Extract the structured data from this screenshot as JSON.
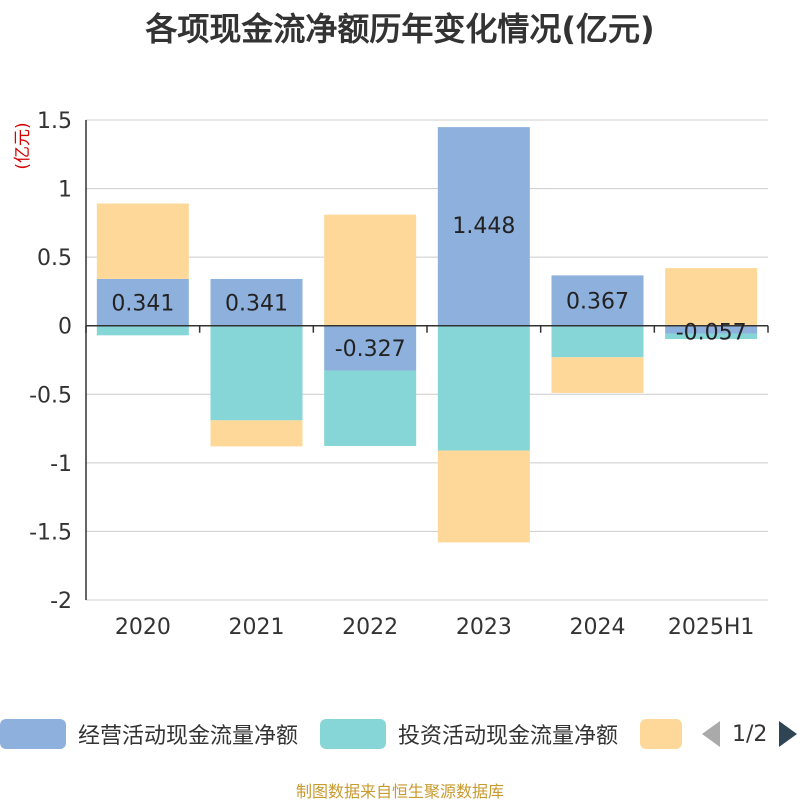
{
  "title": "各项现金流净额历年变化情况(亿元)",
  "source": "制图数据来自恒生聚源数据库",
  "legend_pager": {
    "page": "1/2"
  },
  "colors": {
    "operating": "#8eb0dc",
    "investing": "#86d6d8",
    "financing": "#fed899",
    "unit": "#d40000",
    "text": "#333333",
    "grid": "#cccccc"
  },
  "chart_data": {
    "type": "bar",
    "stacked": true,
    "unit_label": "(亿元)",
    "categories": [
      "2020",
      "2021",
      "2022",
      "2023",
      "2024",
      "2025H1"
    ],
    "ylim": [
      -2,
      1.5
    ],
    "yticks": [
      1.5,
      1,
      0.5,
      0,
      -0.5,
      -1,
      -1.5,
      -2
    ],
    "ytick_labels": [
      "1.5",
      "1",
      "0.5",
      "0",
      "-0.5",
      "-1",
      "-1.5",
      "-2"
    ],
    "grid": true,
    "legend_position": "bottom",
    "series": [
      {
        "name": "经营活动现金流量净额",
        "color_key": "operating",
        "values": [
          0.341,
          0.341,
          -0.327,
          1.448,
          0.367,
          -0.057
        ],
        "labels": [
          "0.341",
          "0.341",
          "-0.327",
          "1.448",
          "0.367",
          "-0.057"
        ]
      },
      {
        "name": "投资活动现金流量净额",
        "color_key": "investing",
        "values": [
          -0.07,
          -0.69,
          -0.55,
          -0.91,
          -0.23,
          -0.04
        ]
      },
      {
        "name": "",
        "color_key": "financing",
        "values": [
          0.55,
          -0.19,
          0.81,
          -0.67,
          -0.26,
          0.42
        ]
      }
    ]
  }
}
